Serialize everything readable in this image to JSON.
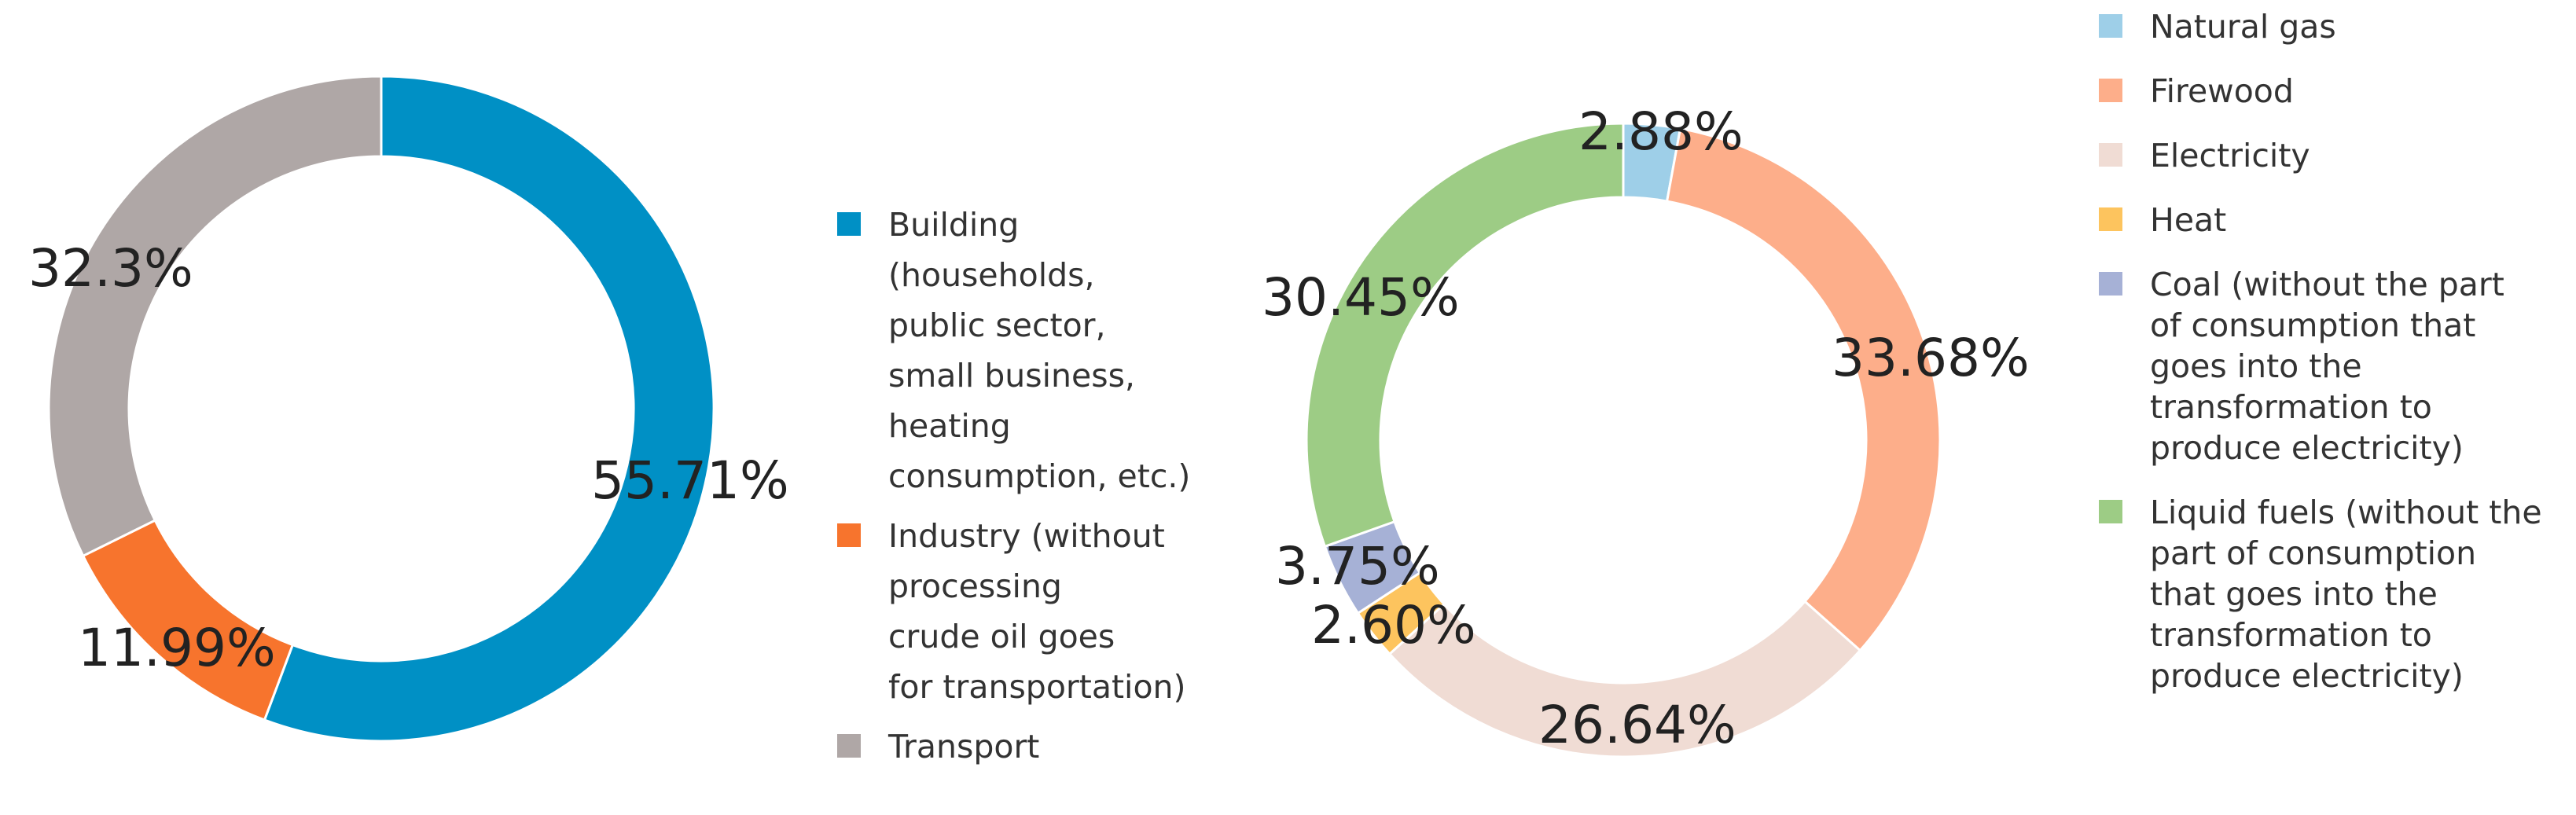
{
  "chart_data": [
    {
      "type": "pie",
      "variant": "donut",
      "title": "",
      "slices": [
        {
          "label": "Building (households, public sector, small business, heating consumption, etc.)",
          "legend_lines": [
            "Building",
            "(households,",
            "public sector,",
            "small business,",
            "heating",
            "consumption, etc.)"
          ],
          "value": 55.71,
          "value_label": "55.71%",
          "color": "#0090C5"
        },
        {
          "label": "Industry (without processing crude oil goes for transportation)",
          "legend_lines": [
            "Industry (without",
            "processing",
            "crude oil goes",
            "for transportation)"
          ],
          "value": 11.99,
          "value_label": "11.99%",
          "color": "#F7742D"
        },
        {
          "label": "Transport",
          "legend_lines": [
            "Transport"
          ],
          "value": 32.3,
          "value_label": "32.3%",
          "color": "#AFA7A6"
        }
      ],
      "legend_placement": "right"
    },
    {
      "type": "pie",
      "variant": "donut",
      "title": "",
      "slices": [
        {
          "label": "Natural gas",
          "legend_lines": [
            "Natural gas"
          ],
          "value": 2.88,
          "value_label": "2.88%",
          "color": "#9ECFE8"
        },
        {
          "label": "Firewood",
          "legend_lines": [
            "Firewood"
          ],
          "value": 33.68,
          "value_label": "33.68%",
          "color": "#FDAE8A"
        },
        {
          "label": "Electricity",
          "legend_lines": [
            "Electricity"
          ],
          "value": 26.64,
          "value_label": "26.64%",
          "color": "#F0DCD4"
        },
        {
          "label": "Heat",
          "legend_lines": [
            "Heat"
          ],
          "value": 2.6,
          "value_label": "2.60%",
          "color": "#FDC45E"
        },
        {
          "label": "Coal (without the part of consumption that goes into the transformation to produce electricity)",
          "legend_lines": [
            "Coal (without the part",
            "of consumption that",
            "goes into the",
            "transformation to",
            "produce electricity)"
          ],
          "value": 3.75,
          "value_label": "3.75%",
          "color": "#A6B1D6"
        },
        {
          "label": "Liquid fuels (without the part of consumption that goes into the transformation to produce electricity)",
          "legend_lines": [
            "Liquid fuels (without the",
            "part of consumption",
            "that goes into the",
            "transformation to",
            "produce electricity)"
          ],
          "value": 30.45,
          "value_label": "30.45%",
          "color": "#9DCC85"
        }
      ],
      "legend_placement": "right"
    }
  ]
}
